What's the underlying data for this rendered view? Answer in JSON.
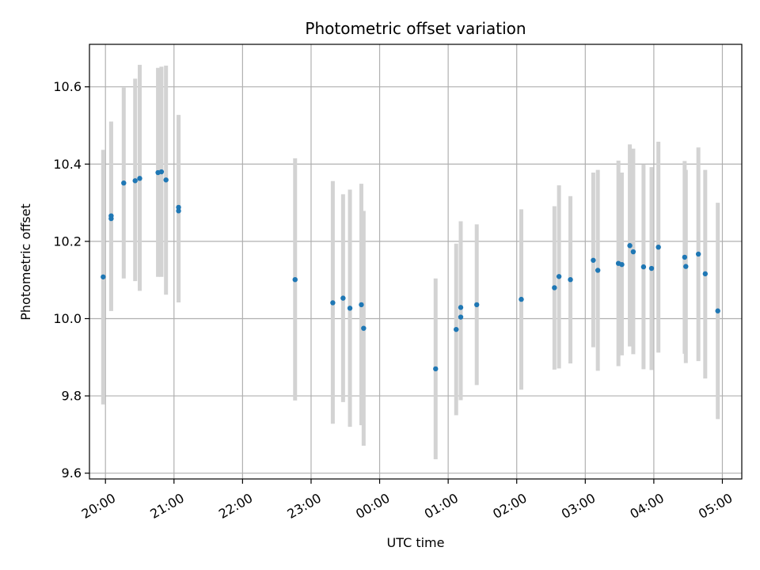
{
  "chart_data": {
    "type": "scatter",
    "title": "Photometric offset variation",
    "xlabel": "UTC time",
    "ylabel": "Photometric offset",
    "xlim": [
      "2000-01-01T19:46:00",
      "2000-01-02T05:17:00"
    ],
    "ylim": [
      9.585,
      10.71
    ],
    "x_ticks": [
      {
        "value": "2000-01-01T20:00:00",
        "label": "20:00"
      },
      {
        "value": "2000-01-01T21:00:00",
        "label": "21:00"
      },
      {
        "value": "2000-01-01T22:00:00",
        "label": "22:00"
      },
      {
        "value": "2000-01-01T23:00:00",
        "label": "23:00"
      },
      {
        "value": "2000-01-02T00:00:00",
        "label": "00:00"
      },
      {
        "value": "2000-01-02T01:00:00",
        "label": "01:00"
      },
      {
        "value": "2000-01-02T02:00:00",
        "label": "02:00"
      },
      {
        "value": "2000-01-02T03:00:00",
        "label": "03:00"
      },
      {
        "value": "2000-01-02T04:00:00",
        "label": "04:00"
      },
      {
        "value": "2000-01-02T05:00:00",
        "label": "05:00"
      }
    ],
    "y_ticks": [
      {
        "value": 9.6,
        "label": "9.6"
      },
      {
        "value": 9.8,
        "label": "9.8"
      },
      {
        "value": 10.0,
        "label": "10.0"
      },
      {
        "value": 10.2,
        "label": "10.2"
      },
      {
        "value": 10.4,
        "label": "10.4"
      },
      {
        "value": 10.6,
        "label": "10.6"
      }
    ],
    "grid": true,
    "colors": {
      "point": "#1f77b4",
      "errorbar": "#d3d3d3",
      "grid": "#b0b0b0"
    },
    "points": [
      {
        "x": "2000-01-01T19:58:00",
        "y": 10.108,
        "ylo": 9.778,
        "yhi": 10.437
      },
      {
        "x": "2000-01-01T20:05:00",
        "y": 10.266,
        "ylo": 10.02,
        "yhi": 10.51
      },
      {
        "x": "2000-01-01T20:05:00",
        "y": 10.259,
        "ylo": 10.02,
        "yhi": 10.51
      },
      {
        "x": "2000-01-01T20:16:00",
        "y": 10.351,
        "ylo": 10.104,
        "yhi": 10.598
      },
      {
        "x": "2000-01-01T20:26:00",
        "y": 10.357,
        "ylo": 10.097,
        "yhi": 10.621
      },
      {
        "x": "2000-01-01T20:30:00",
        "y": 10.363,
        "ylo": 10.072,
        "yhi": 10.657
      },
      {
        "x": "2000-01-01T20:46:00",
        "y": 10.378,
        "ylo": 10.108,
        "yhi": 10.649
      },
      {
        "x": "2000-01-01T20:49:00",
        "y": 10.38,
        "ylo": 10.108,
        "yhi": 10.652
      },
      {
        "x": "2000-01-01T20:53:00",
        "y": 10.359,
        "ylo": 10.062,
        "yhi": 10.655
      },
      {
        "x": "2000-01-01T21:04:00",
        "y": 10.288,
        "ylo": 10.042,
        "yhi": 10.527
      },
      {
        "x": "2000-01-01T21:04:00",
        "y": 10.279,
        "ylo": 10.042,
        "yhi": 10.527
      },
      {
        "x": "2000-01-01T22:46:00",
        "y": 10.101,
        "ylo": 9.788,
        "yhi": 10.415
      },
      {
        "x": "2000-01-01T23:19:00",
        "y": 10.041,
        "ylo": 9.728,
        "yhi": 10.356
      },
      {
        "x": "2000-01-01T23:28:00",
        "y": 10.053,
        "ylo": 9.784,
        "yhi": 10.322
      },
      {
        "x": "2000-01-01T23:34:00",
        "y": 10.027,
        "ylo": 9.72,
        "yhi": 10.334
      },
      {
        "x": "2000-01-01T23:44:00",
        "y": 10.036,
        "ylo": 9.724,
        "yhi": 10.349
      },
      {
        "x": "2000-01-01T23:46:00",
        "y": 9.975,
        "ylo": 9.671,
        "yhi": 10.279
      },
      {
        "x": "2000-01-02T00:49:00",
        "y": 9.87,
        "ylo": 9.636,
        "yhi": 10.104
      },
      {
        "x": "2000-01-02T01:07:00",
        "y": 9.972,
        "ylo": 9.75,
        "yhi": 10.194
      },
      {
        "x": "2000-01-02T01:11:00",
        "y": 10.029,
        "ylo": 9.789,
        "yhi": 10.252
      },
      {
        "x": "2000-01-02T01:11:00",
        "y": 10.004,
        "ylo": 9.789,
        "yhi": 10.22
      },
      {
        "x": "2000-01-02T01:25:00",
        "y": 10.036,
        "ylo": 9.828,
        "yhi": 10.244
      },
      {
        "x": "2000-01-02T02:04:00",
        "y": 10.05,
        "ylo": 9.816,
        "yhi": 10.283
      },
      {
        "x": "2000-01-02T02:33:00",
        "y": 10.08,
        "ylo": 9.868,
        "yhi": 10.291
      },
      {
        "x": "2000-01-02T02:37:00",
        "y": 10.109,
        "ylo": 9.871,
        "yhi": 10.345
      },
      {
        "x": "2000-01-02T02:47:00",
        "y": 10.101,
        "ylo": 9.884,
        "yhi": 10.317
      },
      {
        "x": "2000-01-02T03:07:00",
        "y": 10.151,
        "ylo": 9.926,
        "yhi": 10.378
      },
      {
        "x": "2000-01-02T03:11:00",
        "y": 10.125,
        "ylo": 9.865,
        "yhi": 10.385
      },
      {
        "x": "2000-01-02T03:29:00",
        "y": 10.143,
        "ylo": 9.877,
        "yhi": 10.409
      },
      {
        "x": "2000-01-02T03:32:00",
        "y": 10.14,
        "ylo": 9.905,
        "yhi": 10.378
      },
      {
        "x": "2000-01-02T03:39:00",
        "y": 10.189,
        "ylo": 9.928,
        "yhi": 10.451
      },
      {
        "x": "2000-01-02T03:42:00",
        "y": 10.173,
        "ylo": 9.908,
        "yhi": 10.44
      },
      {
        "x": "2000-01-02T03:51:00",
        "y": 10.134,
        "ylo": 9.869,
        "yhi": 10.399
      },
      {
        "x": "2000-01-02T03:58:00",
        "y": 10.13,
        "ylo": 9.867,
        "yhi": 10.392
      },
      {
        "x": "2000-01-02T04:04:00",
        "y": 10.185,
        "ylo": 9.912,
        "yhi": 10.458
      },
      {
        "x": "2000-01-02T04:27:00",
        "y": 10.159,
        "ylo": 9.909,
        "yhi": 10.408
      },
      {
        "x": "2000-01-02T04:28:00",
        "y": 10.135,
        "ylo": 9.885,
        "yhi": 10.385
      },
      {
        "x": "2000-01-02T04:39:00",
        "y": 10.167,
        "ylo": 9.89,
        "yhi": 10.443
      },
      {
        "x": "2000-01-02T04:45:00",
        "y": 10.116,
        "ylo": 9.845,
        "yhi": 10.385
      },
      {
        "x": "2000-01-02T04:56:00",
        "y": 10.02,
        "ylo": 9.74,
        "yhi": 10.3
      }
    ]
  }
}
